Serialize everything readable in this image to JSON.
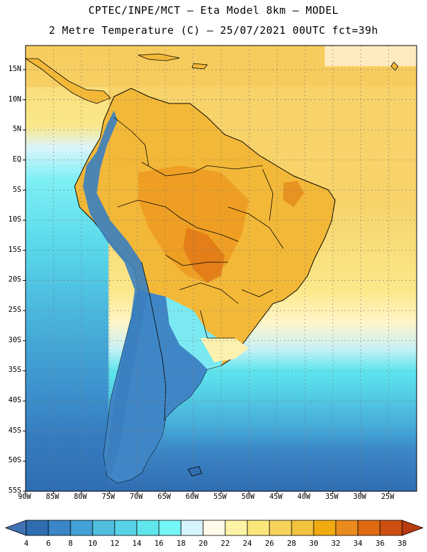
{
  "header": {
    "line1": "CPTEC/INPE/MCT –  Eta Model 8km – MODEL",
    "line2": "2 Metre Temperature (C) – 25/07/2021 00UTC fct=39h"
  },
  "map": {
    "lat_labels": [
      "15N",
      "10N",
      "5N",
      "EQ",
      "5S",
      "10S",
      "15S",
      "20S",
      "25S",
      "30S",
      "35S",
      "40S",
      "45S",
      "50S",
      "55S"
    ],
    "lon_labels": [
      "90W",
      "85W",
      "80W",
      "75W",
      "70W",
      "65W",
      "60W",
      "55W",
      "50W",
      "45W",
      "40W",
      "35W",
      "30W",
      "25W"
    ],
    "lat_range": [
      -55,
      19
    ],
    "lon_range": [
      -90,
      -20
    ],
    "grid": "dotted",
    "field": "2m temperature",
    "units": "C"
  },
  "colorbar": {
    "ticks": [
      "4",
      "6",
      "8",
      "10",
      "12",
      "14",
      "16",
      "18",
      "20",
      "22",
      "24",
      "26",
      "28",
      "30",
      "32",
      "34",
      "36",
      "38"
    ],
    "colors": [
      "#3f72b4",
      "#2f6db1",
      "#3a86c6",
      "#43a1d6",
      "#50bede",
      "#57d2e6",
      "#5fe5ec",
      "#74f5f6",
      "#d6f4fb",
      "#fffbe8",
      "#fdf3a6",
      "#fbe67a",
      "#f8d35c",
      "#f3c23f",
      "#f0ab10",
      "#e98b1d",
      "#de6a12",
      "#cc4f0f",
      "#b83a10"
    ]
  }
}
